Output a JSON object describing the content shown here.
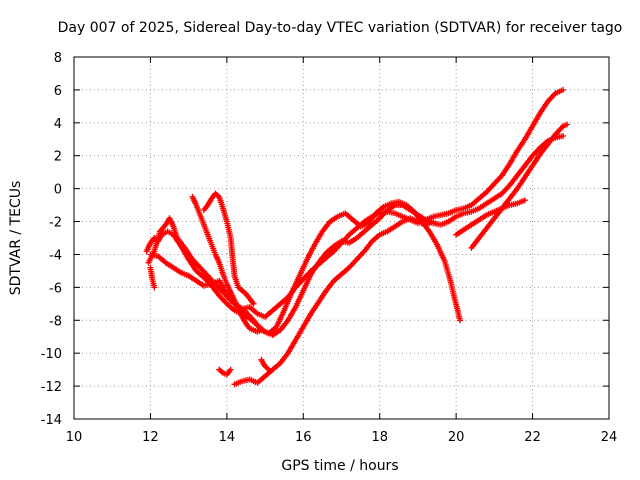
{
  "chart_data": {
    "type": "scatter",
    "title": "Day 007 of 2025, Sidereal Day-to-day VTEC variation (SDTVAR) for receiver tago",
    "xlabel": "GPS time / hours",
    "ylabel": "SDTVAR / TECUs",
    "xlim": [
      10,
      24
    ],
    "ylim": [
      -14,
      8
    ],
    "xticks": [
      10,
      12,
      14,
      16,
      18,
      20,
      22,
      24
    ],
    "yticks": [
      -14,
      -12,
      -10,
      -8,
      -6,
      -4,
      -2,
      0,
      2,
      4,
      6,
      8
    ],
    "grid": true,
    "marker": "plus",
    "color": "#ff0000",
    "series": [
      {
        "points": [
          [
            11.9,
            -3.8
          ],
          [
            12.0,
            -3.3
          ],
          [
            12.1,
            -3.0
          ],
          [
            12.2,
            -3.2
          ],
          [
            12.3,
            -2.8
          ],
          [
            12.45,
            -2.6
          ],
          [
            12.6,
            -2.8
          ],
          [
            12.8,
            -3.5
          ],
          [
            13.0,
            -4.3
          ],
          [
            13.2,
            -5.0
          ],
          [
            13.4,
            -5.4
          ],
          [
            13.6,
            -5.9
          ],
          [
            13.8,
            -6.5
          ],
          [
            14.0,
            -7.0
          ],
          [
            14.2,
            -7.4
          ],
          [
            14.4,
            -7.6
          ],
          [
            14.6,
            -7.9
          ],
          [
            14.8,
            -8.3
          ],
          [
            15.0,
            -8.7
          ],
          [
            15.2,
            -8.9
          ],
          [
            15.4,
            -8.6
          ],
          [
            15.6,
            -8.0
          ],
          [
            15.8,
            -7.2
          ],
          [
            16.0,
            -6.2
          ],
          [
            16.2,
            -5.2
          ],
          [
            16.4,
            -4.5
          ],
          [
            16.6,
            -3.9
          ],
          [
            16.8,
            -3.5
          ],
          [
            17.0,
            -3.2
          ],
          [
            17.2,
            -3.3
          ],
          [
            17.4,
            -3.0
          ],
          [
            17.6,
            -2.6
          ],
          [
            17.8,
            -2.2
          ],
          [
            18.0,
            -1.8
          ],
          [
            18.2,
            -1.3
          ],
          [
            18.4,
            -1.0
          ],
          [
            18.6,
            -1.0
          ],
          [
            18.8,
            -1.3
          ],
          [
            19.0,
            -1.6
          ],
          [
            19.2,
            -1.9
          ],
          [
            19.4,
            -2.1
          ],
          [
            19.6,
            -2.2
          ],
          [
            19.8,
            -2.0
          ],
          [
            20.0,
            -1.7
          ],
          [
            20.2,
            -1.5
          ],
          [
            20.4,
            -1.4
          ],
          [
            20.6,
            -1.2
          ],
          [
            20.8,
            -0.9
          ],
          [
            21.0,
            -0.6
          ],
          [
            21.2,
            -0.3
          ],
          [
            21.4,
            0.2
          ],
          [
            21.6,
            0.8
          ],
          [
            21.8,
            1.4
          ],
          [
            22.0,
            2.0
          ],
          [
            22.2,
            2.5
          ],
          [
            22.4,
            2.9
          ],
          [
            22.6,
            3.1
          ],
          [
            22.8,
            3.2
          ]
        ]
      },
      {
        "points": [
          [
            11.95,
            -4.5
          ],
          [
            12.1,
            -3.8
          ],
          [
            12.25,
            -2.6
          ],
          [
            12.4,
            -2.2
          ],
          [
            12.5,
            -1.8
          ],
          [
            12.6,
            -2.3
          ],
          [
            12.7,
            -3.0
          ],
          [
            12.9,
            -3.6
          ],
          [
            13.1,
            -4.3
          ],
          [
            13.3,
            -4.8
          ],
          [
            13.5,
            -5.3
          ],
          [
            13.7,
            -5.8
          ],
          [
            13.9,
            -6.3
          ],
          [
            14.1,
            -6.8
          ],
          [
            14.3,
            -7.2
          ],
          [
            14.5,
            -7.5
          ],
          [
            14.7,
            -8.0
          ],
          [
            14.9,
            -8.6
          ],
          [
            15.1,
            -8.8
          ],
          [
            15.3,
            -8.4
          ],
          [
            15.5,
            -7.4
          ],
          [
            15.7,
            -6.3
          ],
          [
            15.9,
            -5.3
          ],
          [
            16.1,
            -4.3
          ],
          [
            16.3,
            -3.4
          ],
          [
            16.5,
            -2.6
          ],
          [
            16.7,
            -2.0
          ],
          [
            16.9,
            -1.7
          ],
          [
            17.1,
            -1.5
          ],
          [
            17.3,
            -1.9
          ],
          [
            17.5,
            -2.3
          ],
          [
            17.7,
            -2.1
          ],
          [
            17.9,
            -1.5
          ],
          [
            18.1,
            -1.1
          ],
          [
            18.3,
            -0.9
          ],
          [
            18.5,
            -0.8
          ],
          [
            18.7,
            -1.0
          ],
          [
            18.9,
            -1.4
          ],
          [
            19.1,
            -2.0
          ],
          [
            19.3,
            -2.6
          ],
          [
            19.5,
            -3.4
          ],
          [
            19.7,
            -4.4
          ],
          [
            19.85,
            -5.6
          ],
          [
            19.95,
            -6.6
          ],
          [
            20.05,
            -7.5
          ],
          [
            20.1,
            -8.0
          ]
        ]
      },
      {
        "points": [
          [
            12.0,
            -4.0
          ],
          [
            12.2,
            -4.1
          ],
          [
            12.4,
            -4.5
          ],
          [
            12.6,
            -4.8
          ],
          [
            12.8,
            -5.1
          ],
          [
            13.0,
            -5.3
          ],
          [
            13.2,
            -5.6
          ],
          [
            13.4,
            -5.9
          ],
          [
            13.6,
            -5.8
          ],
          [
            13.8,
            -5.6
          ],
          [
            14.0,
            -6.4
          ],
          [
            14.2,
            -7.0
          ],
          [
            14.4,
            -7.3
          ],
          [
            14.6,
            -7.2
          ],
          [
            14.8,
            -7.6
          ],
          [
            15.0,
            -7.8
          ],
          [
            15.2,
            -7.4
          ],
          [
            15.4,
            -7.0
          ],
          [
            15.6,
            -6.6
          ],
          [
            15.8,
            -6.0
          ],
          [
            16.0,
            -5.5
          ],
          [
            16.2,
            -5.0
          ],
          [
            16.4,
            -4.6
          ],
          [
            16.6,
            -4.2
          ],
          [
            16.8,
            -3.8
          ],
          [
            17.0,
            -3.3
          ],
          [
            17.2,
            -2.8
          ],
          [
            17.4,
            -2.4
          ],
          [
            17.6,
            -2.0
          ],
          [
            17.8,
            -1.7
          ],
          [
            18.0,
            -1.5
          ],
          [
            18.2,
            -1.4
          ],
          [
            18.4,
            -1.5
          ],
          [
            18.6,
            -1.7
          ],
          [
            18.8,
            -1.9
          ],
          [
            19.0,
            -2.1
          ],
          [
            19.2,
            -1.9
          ],
          [
            19.4,
            -1.7
          ],
          [
            19.6,
            -1.6
          ],
          [
            19.8,
            -1.5
          ],
          [
            20.0,
            -1.3
          ],
          [
            20.2,
            -1.2
          ],
          [
            20.4,
            -1.0
          ],
          [
            20.6,
            -0.6
          ],
          [
            20.8,
            -0.2
          ],
          [
            21.0,
            0.3
          ],
          [
            21.2,
            0.8
          ],
          [
            21.4,
            1.5
          ],
          [
            21.6,
            2.3
          ],
          [
            21.8,
            3.0
          ],
          [
            22.0,
            3.8
          ],
          [
            22.2,
            4.6
          ],
          [
            22.4,
            5.3
          ],
          [
            22.6,
            5.8
          ],
          [
            22.8,
            6.0
          ]
        ]
      },
      {
        "points": [
          [
            13.1,
            -0.5
          ],
          [
            13.2,
            -1.0
          ],
          [
            13.3,
            -1.6
          ],
          [
            13.4,
            -2.2
          ],
          [
            13.5,
            -2.8
          ],
          [
            13.6,
            -3.4
          ],
          [
            13.7,
            -4.0
          ],
          [
            13.8,
            -4.5
          ],
          [
            13.9,
            -5.2
          ],
          [
            14.0,
            -5.8
          ],
          [
            14.1,
            -6.3
          ],
          [
            14.2,
            -6.8
          ],
          [
            14.3,
            -7.3
          ],
          [
            14.4,
            -7.8
          ],
          [
            14.5,
            -8.2
          ],
          [
            14.6,
            -8.5
          ],
          [
            14.7,
            -8.6
          ],
          [
            14.8,
            -8.7
          ],
          [
            14.9,
            -8.6
          ]
        ]
      },
      {
        "points": [
          [
            13.4,
            -1.3
          ],
          [
            13.5,
            -1.0
          ],
          [
            13.6,
            -0.6
          ],
          [
            13.7,
            -0.3
          ],
          [
            13.8,
            -0.5
          ],
          [
            13.9,
            -1.2
          ],
          [
            14.0,
            -2.0
          ],
          [
            14.1,
            -3.0
          ],
          [
            14.15,
            -4.2
          ],
          [
            14.2,
            -5.3
          ],
          [
            14.3,
            -6.0
          ],
          [
            14.5,
            -6.4
          ],
          [
            14.7,
            -7.0
          ]
        ]
      },
      {
        "points": [
          [
            13.8,
            -11.0
          ],
          [
            13.9,
            -11.2
          ],
          [
            14.0,
            -11.3
          ],
          [
            14.1,
            -11.0
          ]
        ]
      },
      {
        "points": [
          [
            14.2,
            -11.9
          ],
          [
            14.4,
            -11.7
          ],
          [
            14.6,
            -11.6
          ],
          [
            14.8,
            -11.8
          ],
          [
            15.0,
            -11.4
          ],
          [
            15.2,
            -11.0
          ],
          [
            15.4,
            -10.6
          ],
          [
            15.6,
            -10.0
          ],
          [
            15.8,
            -9.2
          ],
          [
            16.0,
            -8.4
          ],
          [
            16.2,
            -7.6
          ],
          [
            16.4,
            -6.9
          ],
          [
            16.6,
            -6.2
          ],
          [
            16.8,
            -5.6
          ],
          [
            17.0,
            -5.2
          ],
          [
            17.2,
            -4.8
          ],
          [
            17.4,
            -4.3
          ],
          [
            17.6,
            -3.8
          ],
          [
            17.8,
            -3.2
          ],
          [
            18.0,
            -2.8
          ],
          [
            18.2,
            -2.6
          ],
          [
            18.4,
            -2.3
          ],
          [
            18.6,
            -2.0
          ],
          [
            18.8,
            -1.8
          ],
          [
            19.0,
            -2.0
          ],
          [
            19.2,
            -2.2
          ],
          [
            19.4,
            -2.0
          ]
        ]
      },
      {
        "points": [
          [
            14.9,
            -10.4
          ],
          [
            15.0,
            -10.8
          ],
          [
            15.1,
            -11.0
          ]
        ]
      },
      {
        "points": [
          [
            20.0,
            -2.8
          ],
          [
            20.2,
            -2.5
          ],
          [
            20.4,
            -2.2
          ],
          [
            20.6,
            -1.9
          ],
          [
            20.8,
            -1.6
          ],
          [
            21.0,
            -1.4
          ],
          [
            21.2,
            -1.2
          ],
          [
            21.4,
            -1.0
          ],
          [
            21.6,
            -0.9
          ],
          [
            21.8,
            -0.7
          ]
        ]
      },
      {
        "points": [
          [
            20.4,
            -3.6
          ],
          [
            20.6,
            -3.0
          ],
          [
            20.8,
            -2.4
          ],
          [
            21.0,
            -1.8
          ],
          [
            21.2,
            -1.2
          ],
          [
            21.4,
            -0.6
          ],
          [
            21.6,
            0.0
          ],
          [
            21.8,
            0.7
          ],
          [
            22.0,
            1.4
          ],
          [
            22.2,
            2.1
          ],
          [
            22.4,
            2.7
          ],
          [
            22.6,
            3.3
          ],
          [
            22.8,
            3.8
          ],
          [
            22.9,
            3.9
          ]
        ]
      },
      {
        "points": [
          [
            12.0,
            -4.8
          ],
          [
            12.05,
            -5.5
          ],
          [
            12.1,
            -6.0
          ]
        ]
      }
    ]
  }
}
